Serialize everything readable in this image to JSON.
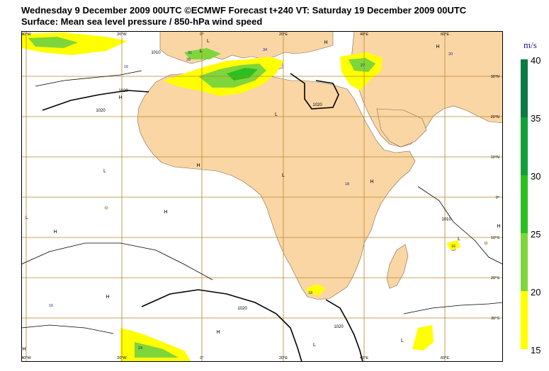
{
  "title_line1": "Wednesday 9 December 2009 00UTC ©ECMWF Forecast t+240 VT: Saturday 19 December 2009 00UTC",
  "title_line2": "Surface: Mean sea level pressure / 850-hPa wind speed",
  "lon_labels": [
    "40°W",
    "20°W",
    "0°",
    "20°E",
    "40°E",
    "60°E"
  ],
  "lat_labels": [
    "30°N",
    "20°N",
    "10°N",
    "0°",
    "10°S",
    "20°S",
    "30°S"
  ],
  "pressure_labels": [
    "1020",
    "1020",
    "1020",
    "1010",
    "1010",
    "1020",
    "1020"
  ],
  "pressure_centers": [
    "L",
    "L",
    "H",
    "H",
    "L",
    "L",
    "H",
    "H",
    "L",
    "H",
    "H",
    "L",
    "H",
    "H",
    "L",
    "H",
    "L",
    "L",
    "H",
    "H"
  ],
  "wind_max_labels": [
    "31",
    "26",
    "34",
    "27",
    "16",
    "18",
    "16",
    "16",
    "24",
    "20",
    "18"
  ],
  "legend": {
    "unit": "m/s",
    "ticks": [
      "40",
      "35",
      "30",
      "25",
      "20",
      "15"
    ],
    "colors": [
      "#0b7a45",
      "#11a03a",
      "#2bbf1f",
      "#7fd63a",
      "#ffff00"
    ]
  },
  "colors": {
    "land": "#fad6a5",
    "grid": "#b8862b",
    "isobar": "#000000",
    "sea": "#ffffff"
  }
}
